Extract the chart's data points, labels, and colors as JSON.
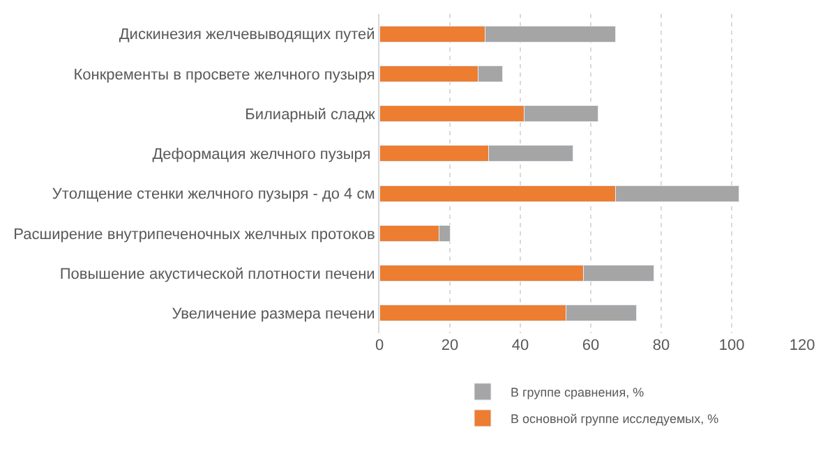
{
  "chart_data": {
    "type": "bar",
    "orientation": "horizontal",
    "stacked": true,
    "categories": [
      "Дискинезия желчевыводящих путей",
      "Конкременты в просвете желчного пузыря",
      "Билиарный сладж",
      "Деформация желчного пузыря ",
      "Утолщение стенки желчного пузыря - до 4 см",
      "Расширение внутрипеченочных желчных протоков",
      "Повышение акустической плотности печени",
      "Увеличение размера печени"
    ],
    "series": [
      {
        "name": "В основной группе исследуемых, %",
        "color": "#ed7d31",
        "values": [
          30,
          28,
          41,
          31,
          67,
          17,
          58,
          53
        ]
      },
      {
        "name": "В группе сравнения, %",
        "color": "#a5a5a5",
        "values": [
          37,
          7,
          21,
          24,
          35,
          3,
          20,
          20
        ]
      }
    ],
    "xlim": [
      0,
      120
    ],
    "xticks": [
      0,
      20,
      40,
      60,
      80,
      100,
      120
    ],
    "grid": "x",
    "legend": "bottom"
  }
}
